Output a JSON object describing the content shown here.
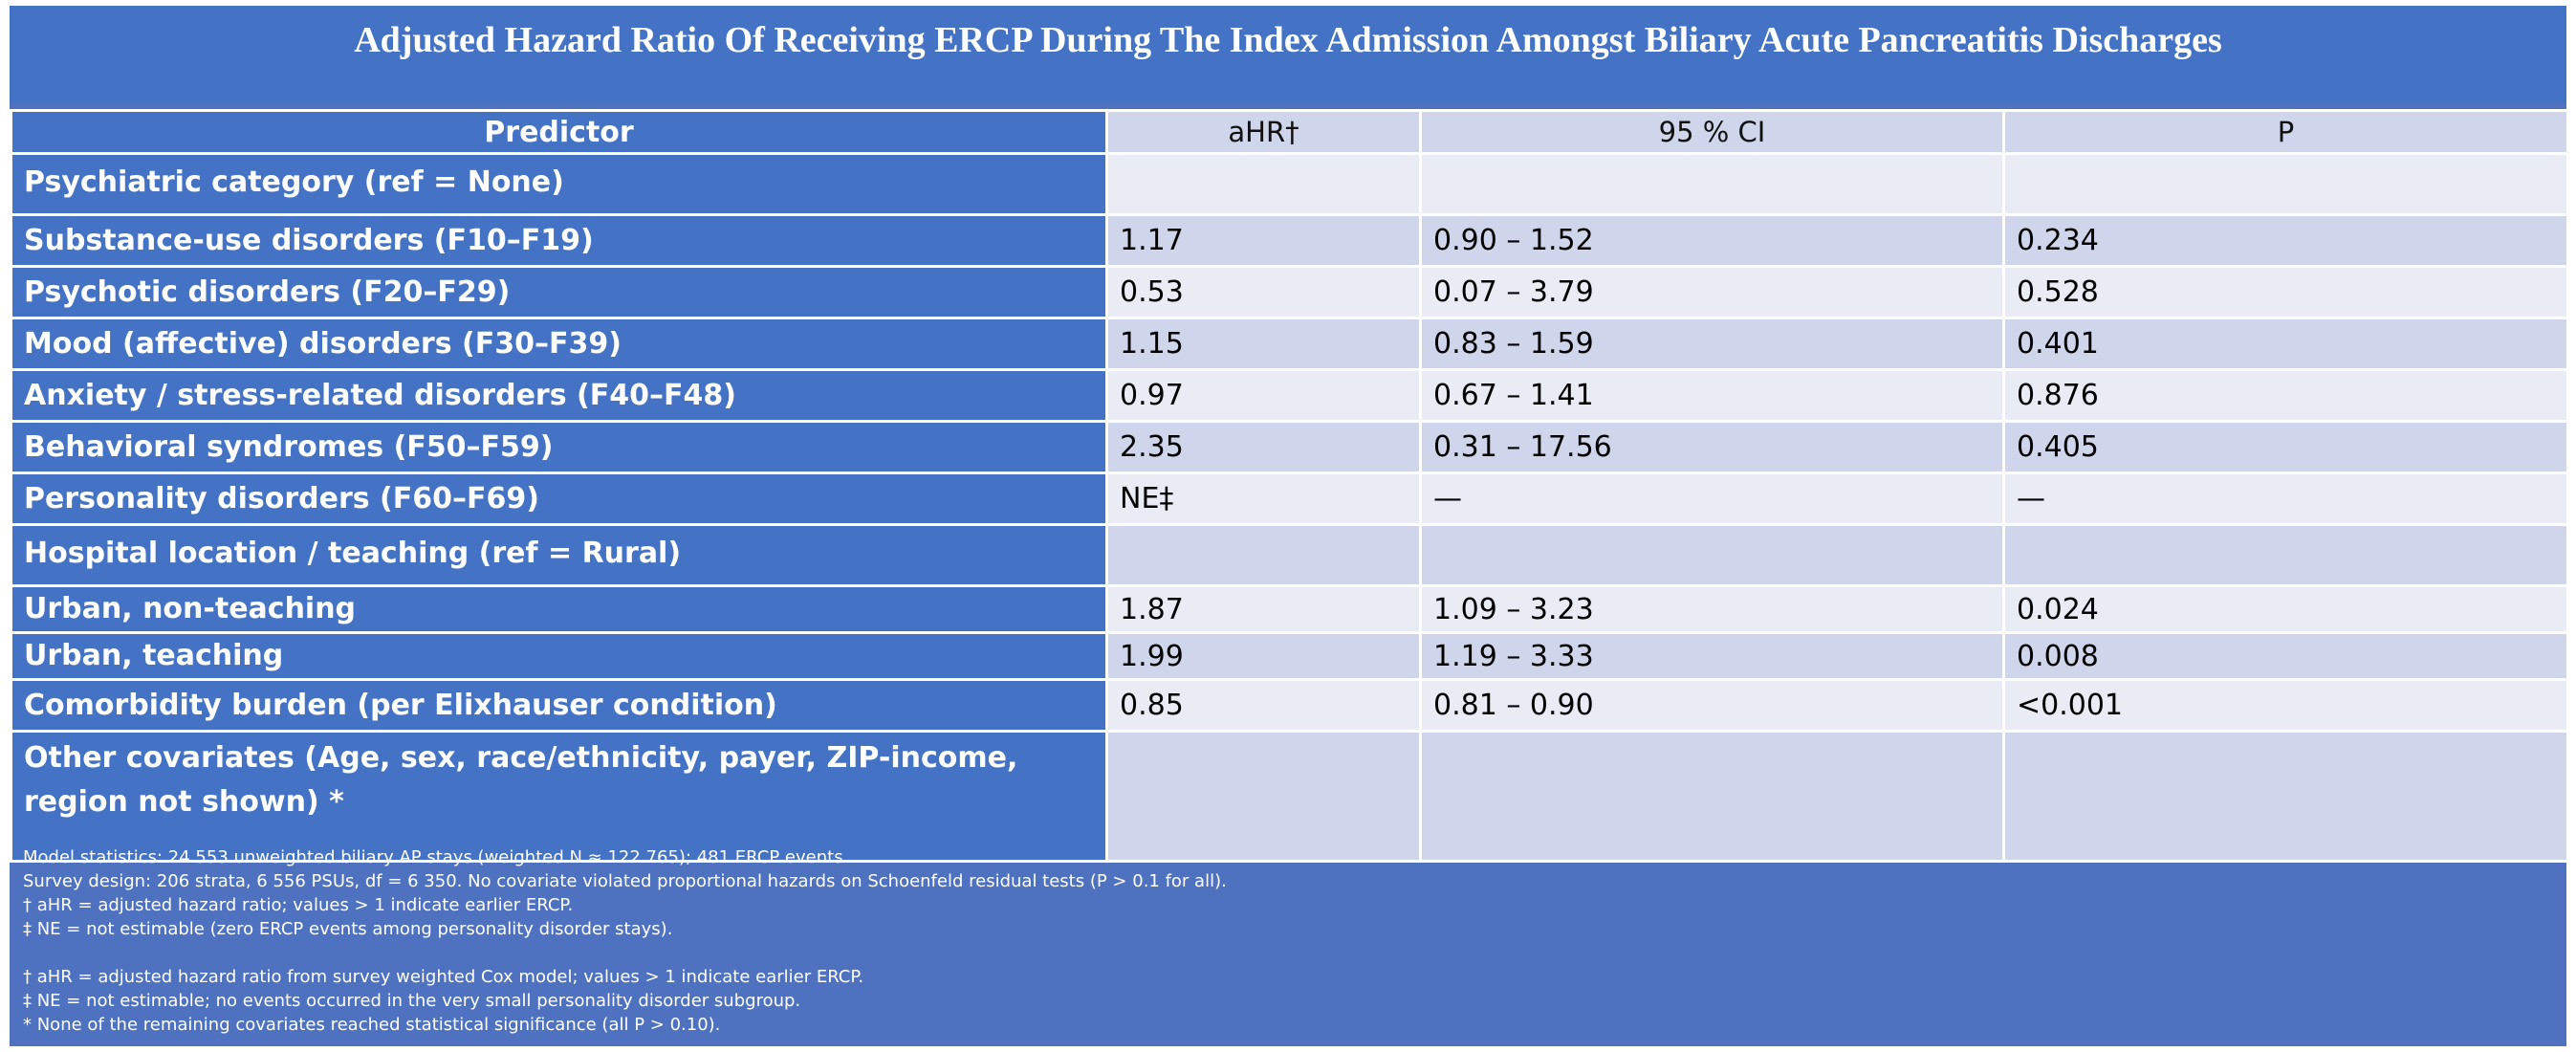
{
  "title": "Adjusted Hazard Ratio Of Receiving ERCP During The Index Admission Amongst Biliary Acute Pancreatitis Discharges",
  "table": {
    "headers": [
      "Predictor",
      "aHR†",
      "95 % CI",
      "P"
    ],
    "rows": [
      {
        "predictor": "Psychiatric category (ref = None)",
        "ahr": "",
        "ci": "",
        "p": ""
      },
      {
        "predictor": "Substance-use disorders (F10–F19)",
        "ahr": "1.17",
        "ci": "0.90 – 1.52",
        "p": "0.234"
      },
      {
        "predictor": "Psychotic disorders (F20–F29)",
        "ahr": "0.53",
        "ci": "0.07 – 3.79",
        "p": "0.528"
      },
      {
        "predictor": "Mood (affective) disorders (F30–F39)",
        "ahr": "1.15",
        "ci": "0.83 – 1.59",
        "p": "0.401"
      },
      {
        "predictor": "Anxiety / stress-related disorders (F40–F48)",
        "ahr": "0.97",
        "ci": "0.67 – 1.41",
        "p": "0.876"
      },
      {
        "predictor": "Behavioral syndromes (F50–F59)",
        "ahr": "2.35",
        "ci": "0.31 – 17.56",
        "p": "0.405"
      },
      {
        "predictor": "Personality disorders (F60–F69)",
        "ahr": "NE‡",
        "ci": "—",
        "p": "—"
      },
      {
        "predictor": "Hospital location / teaching (ref = Rural)",
        "ahr": "",
        "ci": "",
        "p": ""
      },
      {
        "predictor": "Urban, non-teaching",
        "ahr": "1.87",
        "ci": "1.09 – 3.23",
        "p": "0.024"
      },
      {
        "predictor": "Urban, teaching",
        "ahr": "1.99",
        "ci": "1.19 – 3.33",
        "p": "0.008"
      },
      {
        "predictor": "Comorbidity burden (per Elixhauser condition)",
        "ahr": "0.85",
        "ci": "0.81 – 0.90",
        "p": "<0.001"
      },
      {
        "predictor": "Other covariates (Age, sex, race/ethnicity, payer, ZIP-income, region not shown) *",
        "ahr": "",
        "ci": "",
        "p": ""
      }
    ]
  },
  "footnotes": {
    "group1": [
      "Model statistics: 24 553 unweighted biliary AP stays (weighted N ≈ 122 765); 481 ERCP events.",
      "Survey design: 206 strata, 6 556 PSUs, df = 6 350. No covariate violated proportional hazards on Schoenfeld residual tests (P > 0.1 for all).",
      "† aHR = adjusted hazard ratio; values > 1 indicate earlier ERCP.",
      "‡ NE = not estimable (zero ERCP events among personality disorder stays)."
    ],
    "group2": [
      "† aHR = adjusted hazard ratio from survey weighted Cox model; values > 1 indicate earlier ERCP.",
      "‡ NE = not estimable; no events occurred in the very small personality disorder subgroup.",
      "* None of the remaining covariates reached statistical significance (all P > 0.10)."
    ]
  }
}
